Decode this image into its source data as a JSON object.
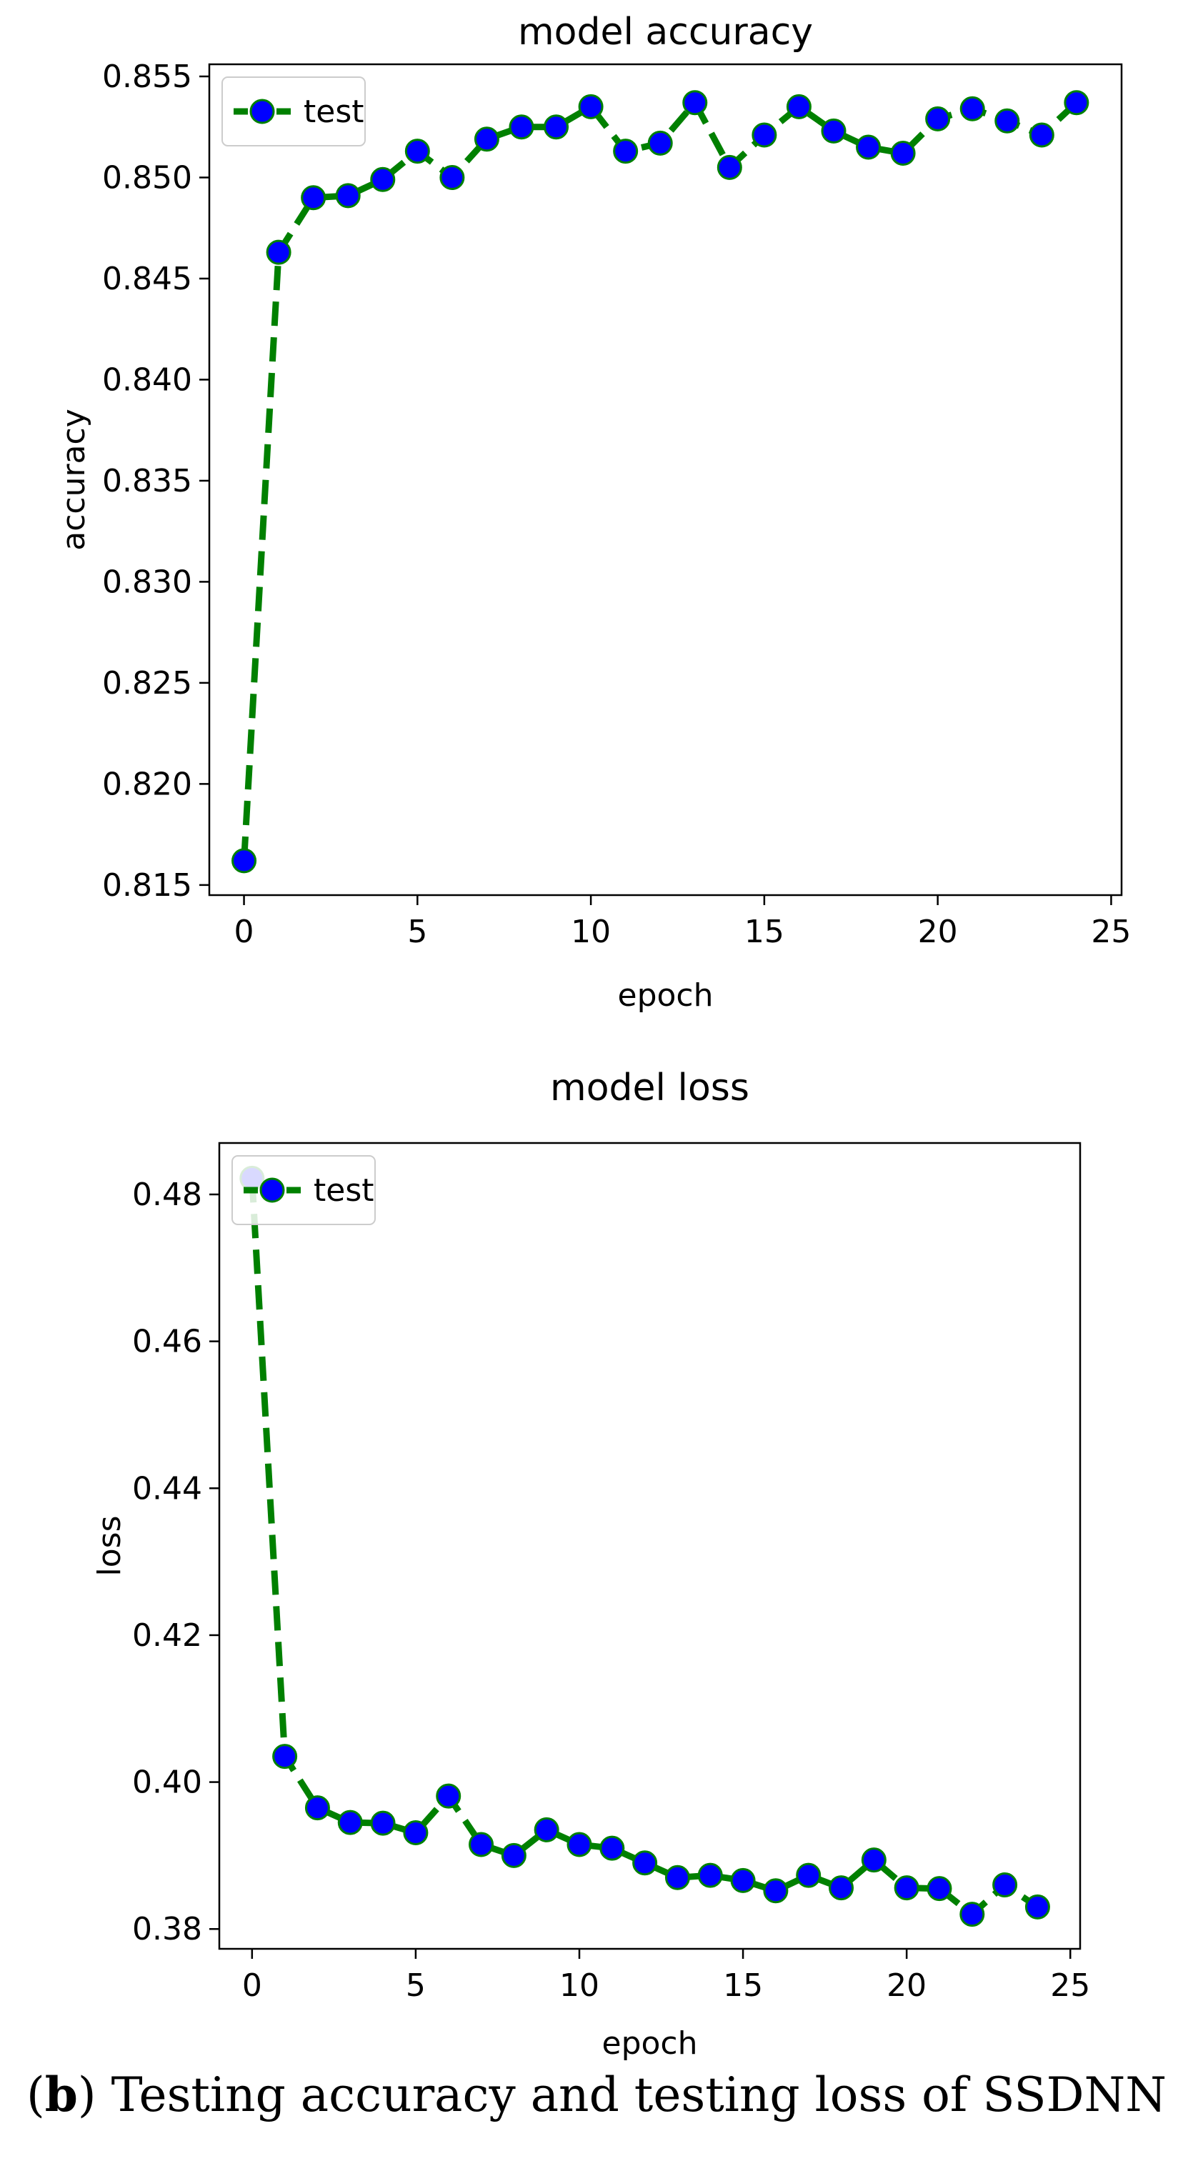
{
  "chart_data": [
    {
      "type": "line",
      "title": "model accuracy",
      "xlabel": "epoch",
      "ylabel": "accuracy",
      "xlim": [
        -1,
        25.3
      ],
      "ylim": [
        0.8145,
        0.8556
      ],
      "xticks": [
        0,
        5,
        10,
        15,
        20,
        25
      ],
      "yticks": [
        0.815,
        0.82,
        0.825,
        0.83,
        0.835,
        0.84,
        0.845,
        0.85,
        0.855
      ],
      "ytick_labels": [
        "0.815",
        "0.820",
        "0.825",
        "0.830",
        "0.835",
        "0.840",
        "0.845",
        "0.850",
        "0.855"
      ],
      "grid": false,
      "legend": "top-left",
      "series": [
        {
          "name": "test",
          "x": [
            0,
            1,
            2,
            3,
            4,
            5,
            6,
            7,
            8,
            9,
            10,
            11,
            12,
            13,
            14,
            15,
            16,
            17,
            18,
            19,
            20,
            21,
            22,
            23,
            24
          ],
          "values": [
            0.8162,
            0.8463,
            0.849,
            0.8491,
            0.8499,
            0.8513,
            0.85,
            0.8519,
            0.8525,
            0.8525,
            0.8535,
            0.8513,
            0.8517,
            0.8537,
            0.8505,
            0.8521,
            0.8535,
            0.8523,
            0.8515,
            0.8512,
            0.8529,
            0.8534,
            0.8528,
            0.8521,
            0.8537
          ]
        }
      ]
    },
    {
      "type": "line",
      "title": "model loss",
      "xlabel": "epoch",
      "ylabel": "loss",
      "xlim": [
        -1,
        25.3
      ],
      "ylim": [
        0.3773,
        0.487
      ],
      "xticks": [
        0,
        5,
        10,
        15,
        20,
        25
      ],
      "yticks": [
        0.38,
        0.4,
        0.42,
        0.44,
        0.46,
        0.48
      ],
      "ytick_labels": [
        "0.38",
        "0.40",
        "0.42",
        "0.44",
        "0.46",
        "0.48"
      ],
      "grid": false,
      "legend": "top-left",
      "series": [
        {
          "name": "test",
          "x": [
            0,
            1,
            2,
            3,
            4,
            5,
            6,
            7,
            8,
            9,
            10,
            11,
            12,
            13,
            14,
            15,
            16,
            17,
            18,
            19,
            20,
            21,
            22,
            23,
            24
          ],
          "values": [
            0.4822,
            0.4035,
            0.3965,
            0.3945,
            0.3944,
            0.3931,
            0.3981,
            0.3915,
            0.39,
            0.3935,
            0.3915,
            0.391,
            0.389,
            0.387,
            0.3873,
            0.3866,
            0.3852,
            0.3873,
            0.3856,
            0.3894,
            0.3856,
            0.3855,
            0.382,
            0.386,
            0.383
          ]
        }
      ]
    }
  ],
  "style": {
    "line_color": "#008000",
    "marker_color": "#0000ff",
    "marker_edge_color": "#008000",
    "axis_color": "#000000"
  },
  "caption": {
    "label": "b",
    "text": "Testing accuracy and testing loss of SSDNN"
  }
}
